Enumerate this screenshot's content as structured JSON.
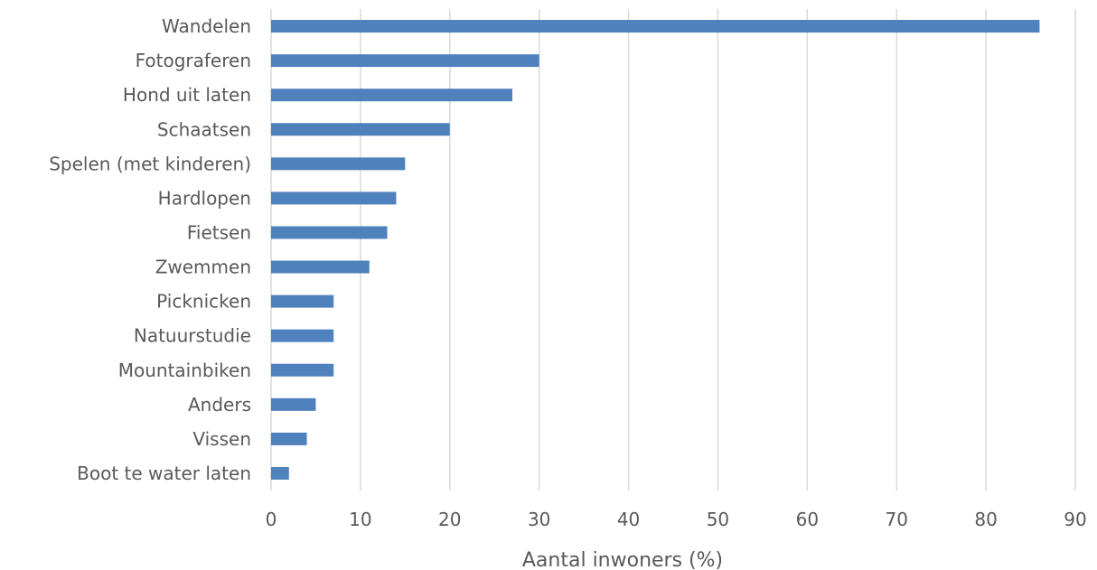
{
  "chart_data": {
    "type": "bar",
    "orientation": "horizontal",
    "categories": [
      "Wandelen",
      "Fotograferen",
      "Hond uit laten",
      "Schaatsen",
      "Spelen (met kinderen)",
      "Hardlopen",
      "Fietsen",
      "Zwemmen",
      "Picknicken",
      "Natuurstudie",
      "Mountainbiken",
      "Anders",
      "Vissen",
      "Boot te water laten"
    ],
    "values": [
      86,
      30,
      27,
      20,
      15,
      14,
      13,
      11,
      7,
      7,
      7,
      5,
      4,
      2
    ],
    "xlabel": "Aantal inwoners (%)",
    "ylabel": "",
    "title": "",
    "xlim": [
      0,
      90
    ],
    "xticks": [
      "0",
      "10",
      "20",
      "30",
      "40",
      "50",
      "60",
      "70",
      "80",
      "90"
    ],
    "grid": "vertical",
    "legend": "none",
    "bar_color": "#4f81bd",
    "grid_color": "#d9d9d9",
    "text_color": "#595959"
  }
}
